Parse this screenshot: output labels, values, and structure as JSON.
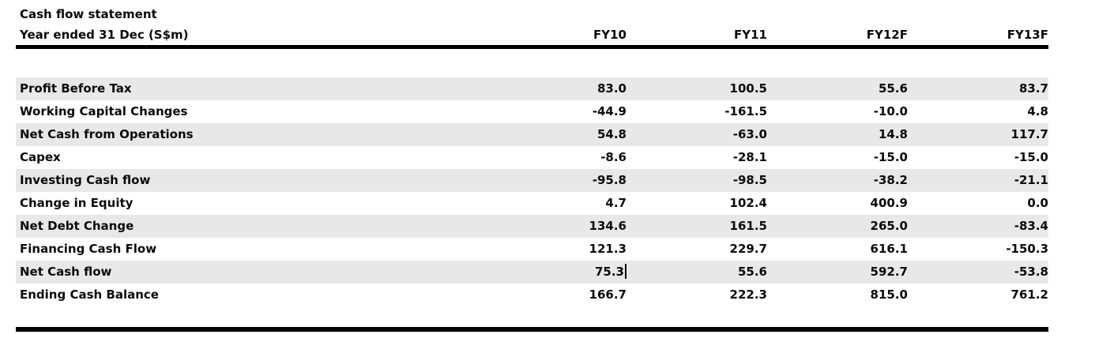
{
  "table": {
    "title": "Cash flow statement",
    "header": {
      "label": "Year ended 31 Dec (S$m)",
      "columns": [
        "FY10",
        "FY11",
        "FY12F",
        "FY13F"
      ]
    },
    "rows": [
      {
        "label": "Profit Before Tax",
        "values": [
          "83.0",
          "100.5",
          "55.6",
          "83.7"
        ]
      },
      {
        "label": "Working Capital Changes",
        "values": [
          "-44.9",
          "-161.5",
          "-10.0",
          "4.8"
        ]
      },
      {
        "label": "Net Cash from Operations",
        "values": [
          "54.8",
          "-63.0",
          "14.8",
          "117.7"
        ]
      },
      {
        "label": "Capex",
        "values": [
          "-8.6",
          "-28.1",
          "-15.0",
          "-15.0"
        ]
      },
      {
        "label": "Investing Cash flow",
        "values": [
          "-95.8",
          "-98.5",
          "-38.2",
          "-21.1"
        ]
      },
      {
        "label": "Change in Equity",
        "values": [
          "4.7",
          "102.4",
          "400.9",
          "0.0"
        ]
      },
      {
        "label": "Net Debt Change",
        "values": [
          "134.6",
          "161.5",
          "265.0",
          "-83.4"
        ]
      },
      {
        "label": "Financing Cash Flow",
        "values": [
          "121.3",
          "229.7",
          "616.1",
          "-150.3"
        ]
      },
      {
        "label": "Net Cash flow",
        "values": [
          "75.3",
          "55.6",
          "592.7",
          "-53.8"
        ]
      },
      {
        "label": "Ending Cash Balance",
        "values": [
          "166.7",
          "222.3",
          "815.0",
          "761.2"
        ]
      }
    ],
    "editing": {
      "row": 8,
      "col": 0
    },
    "colors": {
      "row_stripe": "#e8e8e8",
      "rule": "#000000",
      "text": "#0a0a0a",
      "background": "#ffffff"
    }
  }
}
